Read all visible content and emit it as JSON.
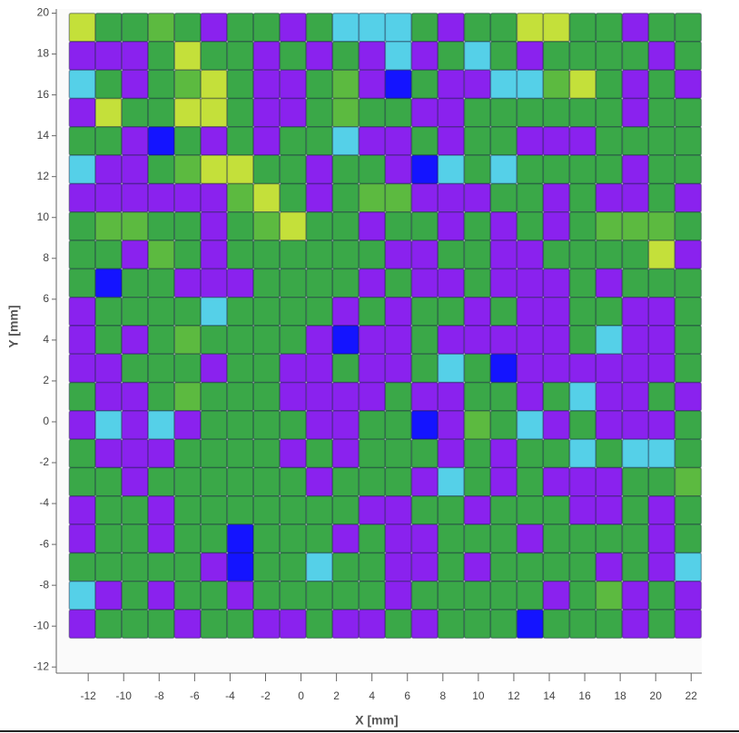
{
  "chart_data": {
    "type": "heatmap",
    "x_label": "X [mm]",
    "y_label": "Y [mm]",
    "xlim": [
      -13.8,
      22.6
    ],
    "ylim": [
      -12.3,
      20.2
    ],
    "xticks": [
      -12,
      -10,
      -8,
      -6,
      -4,
      -2,
      0,
      2,
      4,
      6,
      8,
      10,
      12,
      14,
      16,
      18,
      20,
      22
    ],
    "yticks": [
      -12,
      -10,
      -8,
      -6,
      -4,
      -2,
      0,
      2,
      4,
      6,
      8,
      10,
      12,
      14,
      16,
      18,
      20
    ],
    "colormap": [
      [
        0,
        "#1414ff"
      ],
      [
        0.15,
        "#8a22ee"
      ],
      [
        0.35,
        "#55d0e8"
      ],
      [
        0.5,
        "#3aa848"
      ],
      [
        0.6,
        "#5cba40"
      ],
      [
        0.75,
        "#c4e03a"
      ]
    ],
    "x": [
      -12.33,
      -10.85,
      -9.36,
      -7.88,
      -6.39,
      -4.91,
      -3.42,
      -1.94,
      -0.45,
      1.04,
      2.52,
      4.01,
      5.49,
      6.98,
      8.46,
      9.95,
      11.43,
      12.92,
      14.4,
      15.89,
      17.37,
      18.86,
      20.34,
      21.83
    ],
    "y": [
      19.3,
      17.91,
      16.52,
      15.13,
      13.74,
      12.35,
      10.96,
      9.57,
      8.18,
      6.79,
      5.4,
      4.01,
      2.62,
      1.23,
      -0.16,
      -1.55,
      -2.94,
      -4.33,
      -5.72,
      -7.11,
      -8.5,
      -9.89
    ],
    "z": [
      [
        0.75,
        0.5,
        0.5,
        0.6,
        0.5,
        0.15,
        0.5,
        0.5,
        0.15,
        0.5,
        0.35,
        0.35,
        0.35,
        0.5,
        0.15,
        0.5,
        0.5,
        0.75,
        0.75,
        0.5,
        0.5,
        0.15,
        0.5,
        0.5
      ],
      [
        0.15,
        0.15,
        0.15,
        0.5,
        0.75,
        0.5,
        0.5,
        0.15,
        0.5,
        0.15,
        0.5,
        0.15,
        0.35,
        0.15,
        0.5,
        0.35,
        0.5,
        0.15,
        0.5,
        0.5,
        0.5,
        0.5,
        0.15,
        0.5
      ],
      [
        0.35,
        0.5,
        0.15,
        0.5,
        0.6,
        0.75,
        0.5,
        0.15,
        0.15,
        0.5,
        0.6,
        0.15,
        0,
        0.5,
        0.15,
        0.15,
        0.35,
        0.35,
        0.6,
        0.75,
        0.5,
        0.15,
        0.5,
        0.15
      ],
      [
        0.15,
        0.75,
        0.5,
        0.5,
        0.75,
        0.75,
        0.5,
        0.15,
        0.15,
        0.5,
        0.6,
        0.5,
        0.5,
        0.15,
        0.15,
        0.5,
        0.5,
        0.5,
        0.5,
        0.5,
        0.5,
        0.15,
        0.5,
        0.5
      ],
      [
        0.5,
        0.5,
        0.15,
        0,
        0.5,
        0.15,
        0.5,
        0.15,
        0.5,
        0.5,
        0.35,
        0.15,
        0.15,
        0.5,
        0.15,
        0.5,
        0.5,
        0.15,
        0.15,
        0.15,
        0.5,
        0.5,
        0.5,
        0.5
      ],
      [
        0.35,
        0.15,
        0.15,
        0.5,
        0.6,
        0.75,
        0.75,
        0.5,
        0.5,
        0.15,
        0.5,
        0.5,
        0.15,
        0,
        0.35,
        0.5,
        0.35,
        0.5,
        0.5,
        0.5,
        0.5,
        0.15,
        0.5,
        0.5
      ],
      [
        0.15,
        0.15,
        0.15,
        0.15,
        0.15,
        0.15,
        0.6,
        0.75,
        0.5,
        0.15,
        0.5,
        0.6,
        0.6,
        0.15,
        0.15,
        0.15,
        0.5,
        0.5,
        0.15,
        0.5,
        0.15,
        0.15,
        0.5,
        0.15
      ],
      [
        0.5,
        0.6,
        0.6,
        0.5,
        0.5,
        0.15,
        0.5,
        0.6,
        0.75,
        0.5,
        0.5,
        0.15,
        0.5,
        0.5,
        0.15,
        0.5,
        0.15,
        0.5,
        0.15,
        0.5,
        0.6,
        0.6,
        0.6,
        0.5
      ],
      [
        0.5,
        0.5,
        0.15,
        0.6,
        0.5,
        0.15,
        0.5,
        0.5,
        0.5,
        0.5,
        0.5,
        0.5,
        0.15,
        0.15,
        0.5,
        0.5,
        0.15,
        0.15,
        0.5,
        0.5,
        0.5,
        0.5,
        0.75,
        0.15
      ],
      [
        0.5,
        0,
        0.5,
        0.5,
        0.15,
        0.15,
        0.15,
        0.5,
        0.5,
        0.5,
        0.5,
        0.15,
        0.5,
        0.15,
        0.15,
        0.5,
        0.15,
        0.15,
        0.15,
        0.5,
        0.15,
        0.5,
        0.5,
        0.5
      ],
      [
        0.15,
        0.5,
        0.5,
        0.5,
        0.5,
        0.35,
        0.5,
        0.5,
        0.5,
        0.5,
        0.15,
        0.5,
        0.15,
        0.5,
        0.5,
        0.15,
        0.5,
        0.15,
        0.15,
        0.5,
        0.5,
        0.15,
        0.15,
        0.5
      ],
      [
        0.15,
        0.5,
        0.15,
        0.5,
        0.6,
        0.5,
        0.5,
        0.5,
        0.5,
        0.15,
        0,
        0.15,
        0.15,
        0.5,
        0.15,
        0.15,
        0.15,
        0.15,
        0.15,
        0.5,
        0.35,
        0.15,
        0.15,
        0.5
      ],
      [
        0.15,
        0.15,
        0.5,
        0.5,
        0.5,
        0.15,
        0.5,
        0.5,
        0.15,
        0.15,
        0.5,
        0.15,
        0.15,
        0.5,
        0.35,
        0.5,
        0,
        0.15,
        0.15,
        0.15,
        0.15,
        0.15,
        0.15,
        0.5
      ],
      [
        0.5,
        0.15,
        0.15,
        0.5,
        0.6,
        0.5,
        0.5,
        0.5,
        0.15,
        0.15,
        0.15,
        0.15,
        0.5,
        0.15,
        0.15,
        0.5,
        0.5,
        0.15,
        0.5,
        0.35,
        0.15,
        0.15,
        0.5,
        0.15
      ],
      [
        0.15,
        0.35,
        0.15,
        0.35,
        0.15,
        0.5,
        0.5,
        0.5,
        0.5,
        0.15,
        0.15,
        0.5,
        0.5,
        0,
        0.15,
        0.6,
        0.5,
        0.35,
        0.15,
        0.5,
        0.15,
        0.15,
        0.15,
        0.5
      ],
      [
        0.5,
        0.15,
        0.15,
        0.15,
        0.5,
        0.5,
        0.5,
        0.5,
        0.15,
        0.5,
        0.15,
        0.5,
        0.5,
        0.5,
        0.15,
        0.5,
        0.15,
        0.5,
        0.5,
        0.35,
        0.5,
        0.35,
        0.35,
        0.5
      ],
      [
        0.5,
        0.5,
        0.15,
        0.5,
        0.5,
        0.5,
        0.5,
        0.5,
        0.5,
        0.15,
        0.5,
        0.5,
        0.5,
        0.15,
        0.35,
        0.5,
        0.15,
        0.5,
        0.15,
        0.15,
        0.15,
        0.5,
        0.5,
        0.6
      ],
      [
        0.15,
        0.5,
        0.5,
        0.15,
        0.5,
        0.5,
        0.5,
        0.5,
        0.5,
        0.5,
        0.5,
        0.15,
        0.15,
        0.5,
        0.5,
        0.15,
        0.5,
        0.5,
        0.5,
        0.15,
        0.15,
        0.5,
        0.15,
        0.5
      ],
      [
        0.15,
        0.5,
        0.5,
        0.15,
        0.5,
        0.5,
        0,
        0.5,
        0.5,
        0.5,
        0.15,
        0.5,
        0.15,
        0.15,
        0.5,
        0.5,
        0.5,
        0.15,
        0.5,
        0.5,
        0.5,
        0.5,
        0.15,
        0.5
      ],
      [
        0.5,
        0.5,
        0.5,
        0.5,
        0.5,
        0.15,
        0,
        0.5,
        0.5,
        0.35,
        0.5,
        0.5,
        0.15,
        0.15,
        0.5,
        0.15,
        0.5,
        0.5,
        0.5,
        0.5,
        0.15,
        0.5,
        0.15,
        0.35
      ],
      [
        0.35,
        0.15,
        0.5,
        0.15,
        0.5,
        0.5,
        0.15,
        0.5,
        0.5,
        0.5,
        0.5,
        0.5,
        0.15,
        0.5,
        0.5,
        0.5,
        0.5,
        0.5,
        0.15,
        0.5,
        0.6,
        0.15,
        0.5,
        0.15
      ],
      [
        0.15,
        0.5,
        0.5,
        0.5,
        0.15,
        0.5,
        0.5,
        0.15,
        0.15,
        0.5,
        0.15,
        0.15,
        0.5,
        0.15,
        0.5,
        0.5,
        0.5,
        0,
        0.5,
        0.5,
        0.5,
        0.15,
        0.5,
        0.15
      ]
    ]
  }
}
